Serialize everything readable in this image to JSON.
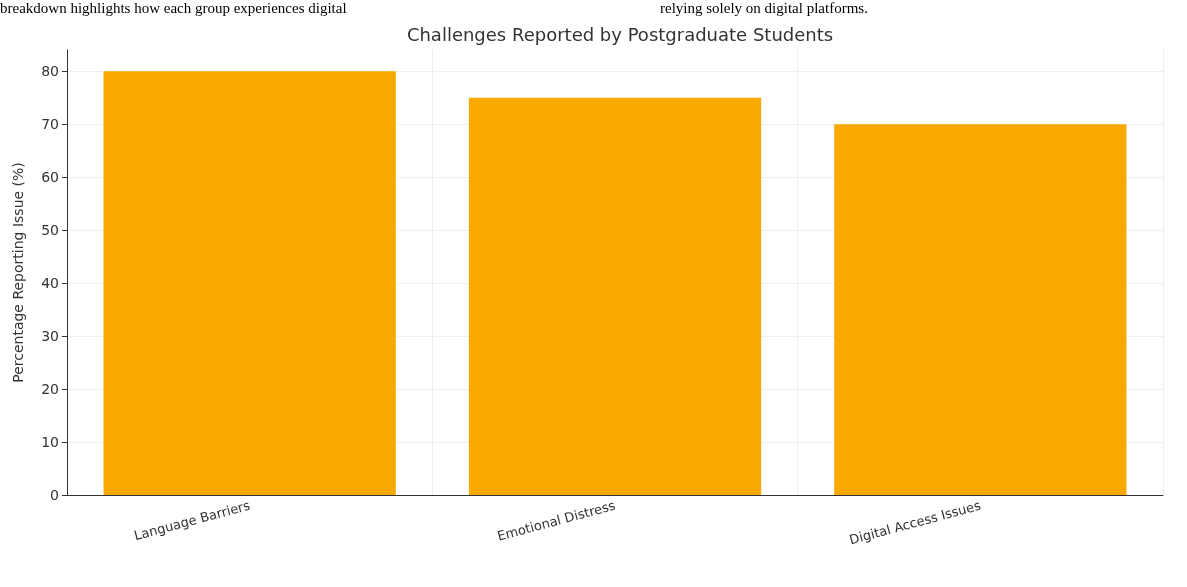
{
  "chart_data": {
    "type": "bar",
    "title": "Challenges Reported by Postgraduate Students",
    "ylabel": "Percentage Reporting Issue (%)",
    "annotations": [
      "breakdown highlights how each group experiences digital",
      "relying solely on digital platforms."
    ],
    "categories": [
      "Language Barriers",
      "Emotional Distress",
      "Digital Access Issues"
    ],
    "values": [
      80,
      75,
      70
    ],
    "color": "#f9a800",
    "ylim": [
      0,
      84
    ],
    "yticks": [
      0,
      10,
      20,
      30,
      40,
      50,
      60,
      70,
      80
    ],
    "grid": true
  }
}
